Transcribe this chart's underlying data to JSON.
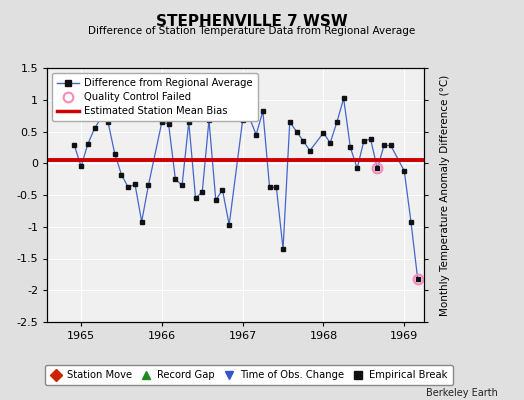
{
  "title": "STEPHENVILLE 7 WSW",
  "subtitle": "Difference of Station Temperature Data from Regional Average",
  "ylabel": "Monthly Temperature Anomaly Difference (°C)",
  "bias_value": 0.05,
  "ylim": [
    -2.5,
    1.5
  ],
  "xlim": [
    1964.58,
    1969.25
  ],
  "x_ticks": [
    1965,
    1966,
    1967,
    1968,
    1969
  ],
  "y_ticks": [
    -2.5,
    -2.0,
    -1.5,
    -1.0,
    -0.5,
    0.0,
    0.5,
    1.0,
    1.5
  ],
  "background_color": "#e0e0e0",
  "plot_bg_color": "#f0f0f0",
  "line_color": "#4466cc",
  "marker_color": "#111111",
  "bias_color": "#cc0000",
  "months": [
    1964.917,
    1965.0,
    1965.083,
    1965.167,
    1965.25,
    1965.333,
    1965.417,
    1965.5,
    1965.583,
    1965.667,
    1965.75,
    1965.833,
    1966.0,
    1966.083,
    1966.167,
    1966.25,
    1966.333,
    1966.417,
    1966.5,
    1966.583,
    1966.667,
    1966.75,
    1966.833,
    1967.0,
    1967.083,
    1967.167,
    1967.25,
    1967.333,
    1967.417,
    1967.5,
    1967.583,
    1967.667,
    1967.75,
    1967.833,
    1968.0,
    1968.083,
    1968.167,
    1968.25,
    1968.333,
    1968.417,
    1968.5,
    1968.583,
    1968.667,
    1968.75,
    1968.833,
    1969.0,
    1969.083,
    1969.167
  ],
  "values": [
    0.28,
    -0.05,
    0.3,
    0.55,
    0.72,
    0.65,
    0.15,
    -0.18,
    -0.38,
    -0.33,
    -0.92,
    -0.35,
    0.65,
    0.62,
    -0.25,
    -0.35,
    0.65,
    -0.55,
    -0.45,
    0.68,
    -0.58,
    -0.42,
    -0.97,
    0.68,
    0.72,
    0.45,
    0.82,
    -0.38,
    -0.38,
    -1.35,
    0.65,
    0.5,
    0.35,
    0.2,
    0.48,
    0.32,
    0.65,
    1.02,
    0.25,
    -0.08,
    0.35,
    0.38,
    -0.08,
    0.28,
    0.28,
    -0.12,
    -0.92,
    -1.83
  ],
  "qc_fail_indices": [
    42,
    47
  ],
  "bottom_legend": [
    {
      "label": "Station Move",
      "color": "#cc2200",
      "marker": "D"
    },
    {
      "label": "Record Gap",
      "color": "#228822",
      "marker": "^"
    },
    {
      "label": "Time of Obs. Change",
      "color": "#3355cc",
      "marker": "v"
    },
    {
      "label": "Empirical Break",
      "color": "#111111",
      "marker": "s"
    }
  ]
}
